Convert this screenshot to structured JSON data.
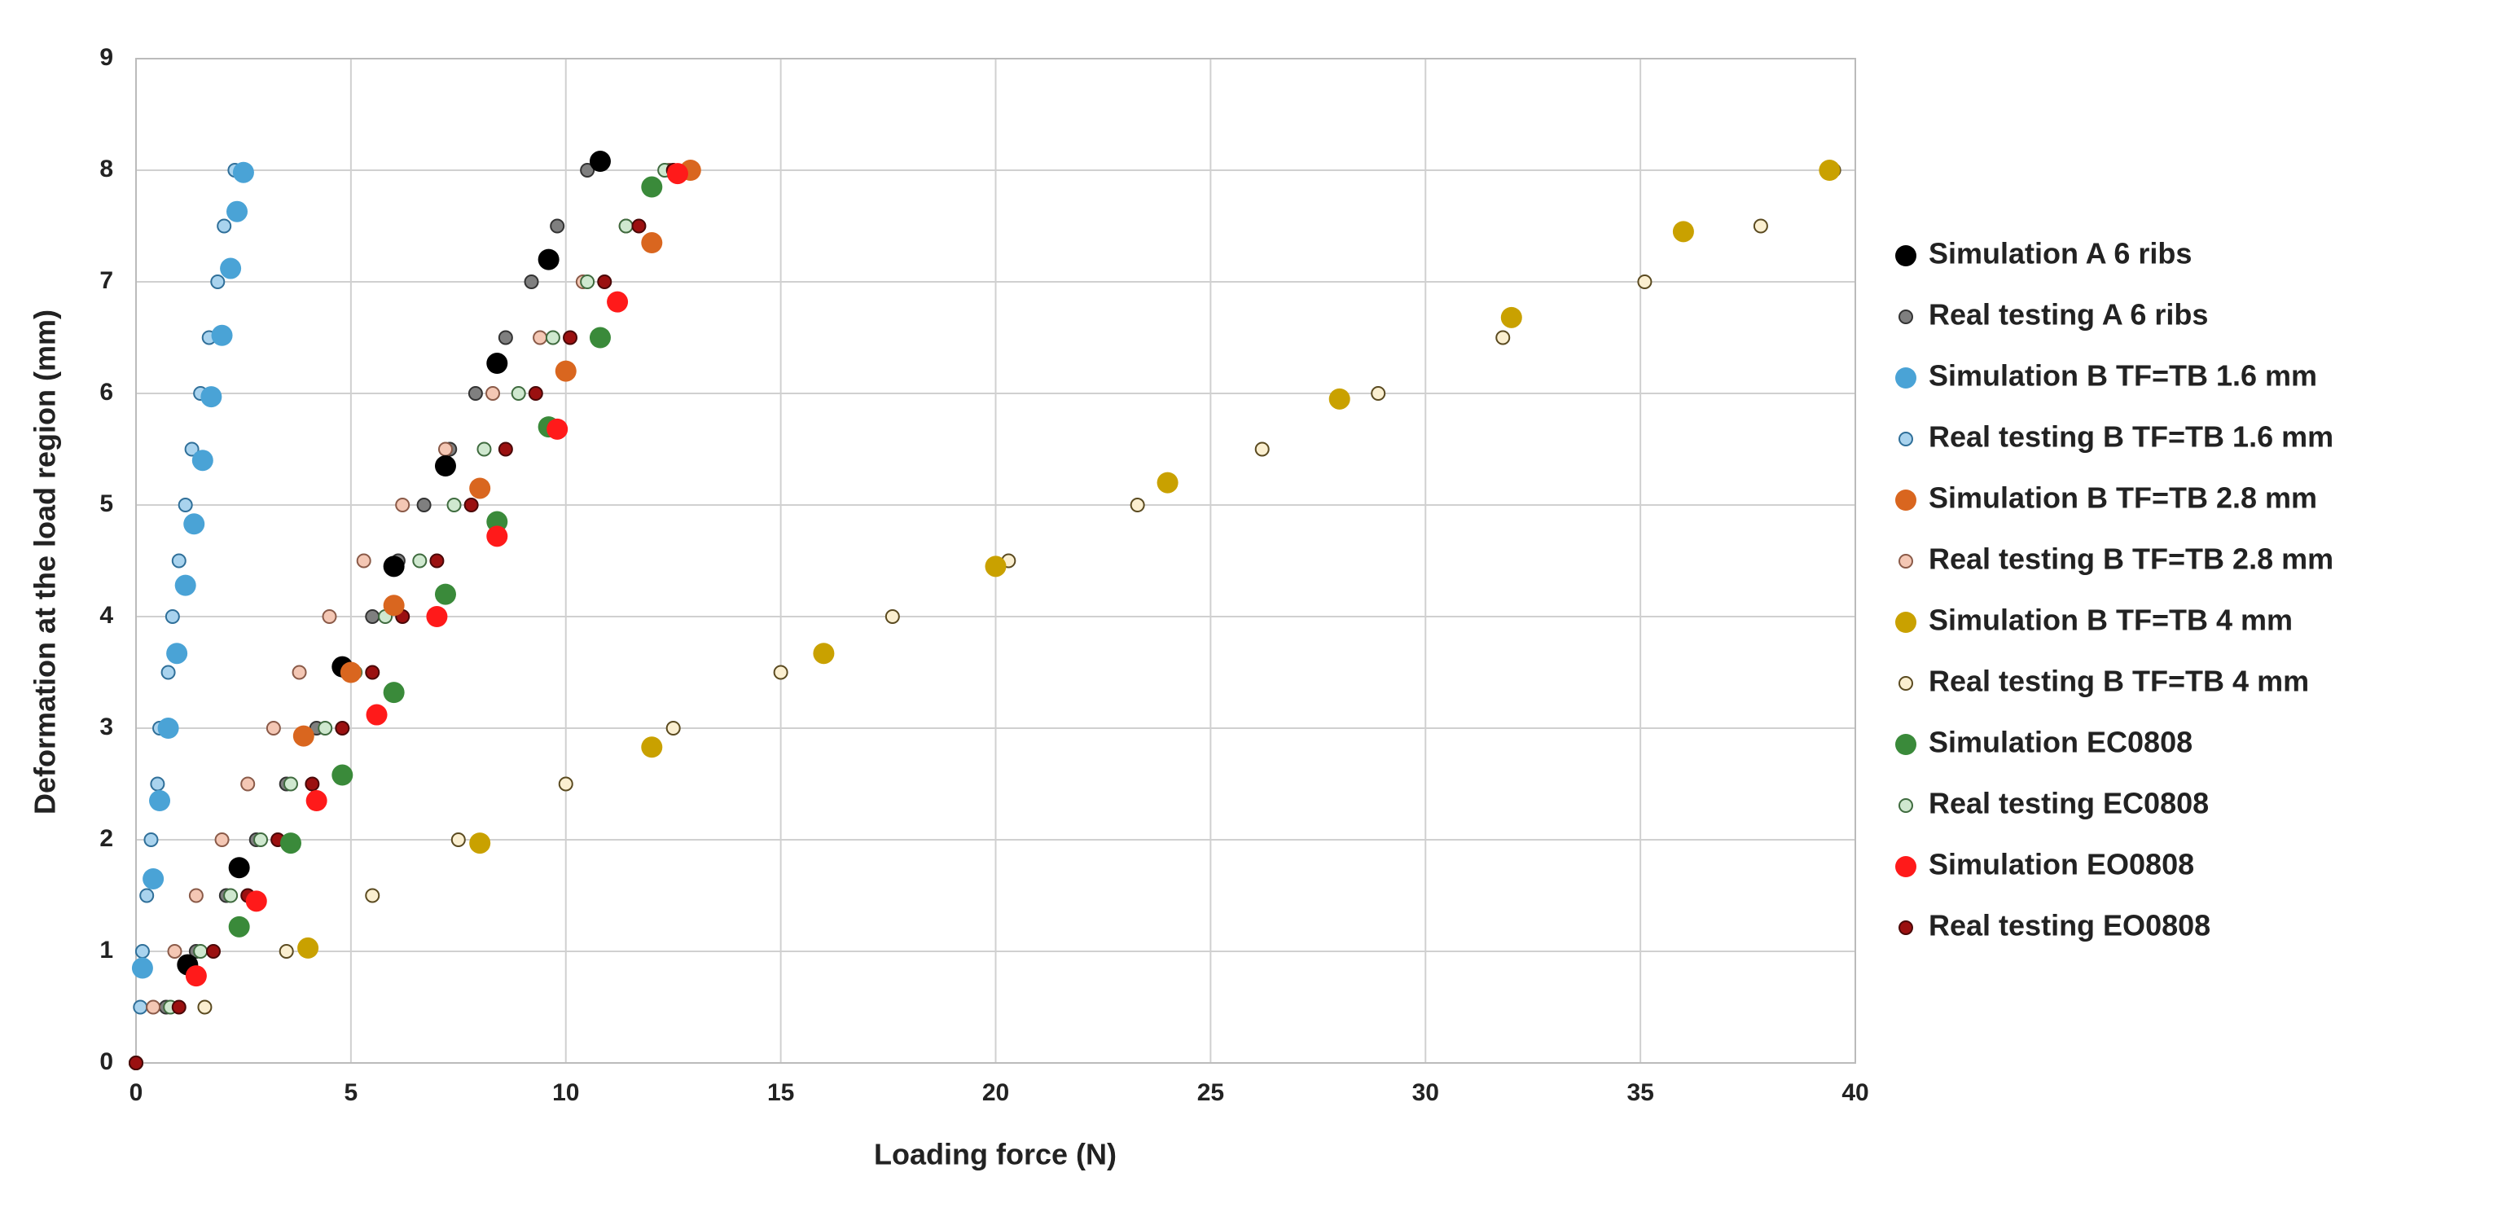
{
  "chart_data": {
    "type": "scatter",
    "xlabel": "Loading force (N)",
    "ylabel": "Deformation at the load region (mm)",
    "xlim": [
      0,
      40
    ],
    "xticks": [
      0,
      5,
      10,
      15,
      20,
      25,
      30,
      35,
      40
    ],
    "ylim": [
      0,
      9
    ],
    "yticks": [
      0,
      1,
      2,
      3,
      4,
      5,
      6,
      7,
      8,
      9
    ],
    "grid": true,
    "legend": "right",
    "series": [
      {
        "name": "Simulation A 6 ribs",
        "color": "#000000",
        "x": [
          1.2,
          2.4,
          4.8,
          6.0,
          7.2,
          8.4,
          9.6,
          10.8
        ],
        "y": [
          0.88,
          1.75,
          3.55,
          4.45,
          5.35,
          6.27,
          7.2,
          8.08
        ]
      },
      {
        "name": "Real testing A 6 ribs",
        "color": "#7f7f7f",
        "edgecolor": "#333333",
        "x": [
          0,
          0.7,
          1.4,
          2.1,
          2.8,
          3.5,
          4.2,
          4.9,
          5.5,
          6.1,
          6.7,
          7.3,
          7.9,
          8.6,
          9.2,
          9.8,
          10.5
        ],
        "y": [
          0,
          0.5,
          1,
          1.5,
          2,
          2.5,
          3,
          3.5,
          4,
          4.5,
          5,
          5.5,
          6,
          6.5,
          7,
          7.5,
          8
        ]
      },
      {
        "name": "Simulation B TF=TB 1.6 mm",
        "color": "#4aa3d6",
        "x": [
          0.15,
          0.4,
          0.55,
          0.75,
          0.95,
          1.15,
          1.35,
          1.55,
          1.75,
          2.0,
          2.2,
          2.35,
          2.5
        ],
        "y": [
          0.85,
          1.65,
          2.35,
          3.0,
          3.67,
          4.28,
          4.83,
          5.4,
          5.97,
          6.52,
          7.12,
          7.63,
          7.98
        ]
      },
      {
        "name": "Real testing B TF=TB 1.6 mm",
        "color": "#a9d3ee",
        "edgecolor": "#2f6f99",
        "x": [
          0,
          0.1,
          0.15,
          0.25,
          0.35,
          0.5,
          0.55,
          0.75,
          0.85,
          1.0,
          1.15,
          1.3,
          1.5,
          1.7,
          1.9,
          2.05,
          2.3
        ],
        "y": [
          0,
          0.5,
          1,
          1.5,
          2,
          2.5,
          3,
          3.5,
          4,
          4.5,
          5,
          5.5,
          6,
          6.5,
          7,
          7.5,
          8
        ]
      },
      {
        "name": "Simulation B TF=TB 2.8 mm",
        "color": "#d9661f",
        "x": [
          3.9,
          5.0,
          6.0,
          8.0,
          10.0,
          12.0,
          12.9
        ],
        "y": [
          2.93,
          3.5,
          4.1,
          5.15,
          6.2,
          7.35,
          8.0
        ]
      },
      {
        "name": "Real testing B TF=TB 2.8 mm",
        "color": "#f4c7b4",
        "edgecolor": "#8a5a48",
        "x": [
          0,
          0.4,
          0.9,
          1.4,
          2.0,
          2.6,
          3.2,
          3.8,
          4.5,
          5.3,
          6.2,
          7.2,
          8.3,
          9.4,
          10.4,
          11.4,
          12.4
        ],
        "y": [
          0,
          0.5,
          1,
          1.5,
          2,
          2.5,
          3,
          3.5,
          4,
          4.5,
          5,
          5.5,
          6,
          6.5,
          7,
          7.5,
          8
        ]
      },
      {
        "name": "Simulation B TF=TB 4 mm",
        "color": "#c9a100",
        "x": [
          4,
          8,
          12,
          16,
          20,
          24,
          28,
          32,
          36,
          39.4
        ],
        "y": [
          1.03,
          1.97,
          2.83,
          3.67,
          4.45,
          5.2,
          5.95,
          6.68,
          7.45,
          8.0
        ]
      },
      {
        "name": "Real testing B TF=TB 4 mm",
        "color": "#fbefd0",
        "edgecolor": "#5a4a20",
        "x": [
          0,
          1.6,
          3.5,
          5.5,
          7.5,
          10,
          12.5,
          15,
          17.6,
          20.3,
          23.3,
          26.2,
          28.9,
          31.8,
          35.1,
          37.8,
          39.5
        ],
        "y": [
          0,
          0.5,
          1,
          1.5,
          2,
          2.5,
          3,
          3.5,
          4,
          4.5,
          5,
          5.5,
          6,
          6.5,
          7,
          7.5,
          8
        ]
      },
      {
        "name": "Simulation EC0808",
        "color": "#3a8a3a",
        "x": [
          2.4,
          3.6,
          4.8,
          6.0,
          7.2,
          8.4,
          9.6,
          10.8,
          12.0
        ],
        "y": [
          1.22,
          1.97,
          2.58,
          3.32,
          4.2,
          4.85,
          5.7,
          6.5,
          7.85
        ]
      },
      {
        "name": "Real testing EC0808",
        "color": "#cfe8cf",
        "edgecolor": "#3f6b3f",
        "x": [
          0,
          0.8,
          1.5,
          2.2,
          2.9,
          3.6,
          4.4,
          5.1,
          5.8,
          6.6,
          7.4,
          8.1,
          8.9,
          9.7,
          10.5,
          11.4,
          12.3
        ],
        "y": [
          0,
          0.5,
          1,
          1.5,
          2,
          2.5,
          3,
          3.5,
          4,
          4.5,
          5,
          5.5,
          6,
          6.5,
          7,
          7.5,
          8
        ]
      },
      {
        "name": "Simulation EO0808",
        "color": "#ff1a1a",
        "x": [
          1.4,
          2.8,
          4.2,
          5.6,
          7.0,
          8.4,
          9.8,
          11.2,
          12.6
        ],
        "y": [
          0.78,
          1.45,
          2.35,
          3.12,
          4.0,
          4.72,
          5.68,
          6.82,
          7.97
        ]
      },
      {
        "name": "Real testing EO0808",
        "color": "#9b1010",
        "edgecolor": "#4a0808",
        "x": [
          0,
          1.0,
          1.8,
          2.6,
          3.3,
          4.1,
          4.8,
          5.5,
          6.2,
          7.0,
          7.8,
          8.6,
          9.3,
          10.1,
          10.9,
          11.7,
          12.5
        ],
        "y": [
          0,
          0.5,
          1,
          1.5,
          2,
          2.5,
          3,
          3.5,
          4,
          4.5,
          5,
          5.5,
          6,
          6.5,
          7,
          7.5,
          8
        ]
      }
    ]
  }
}
